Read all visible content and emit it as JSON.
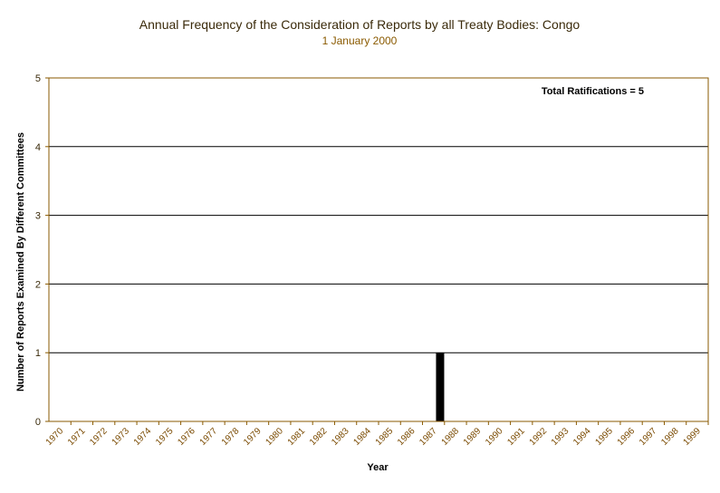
{
  "chart_data": {
    "type": "bar",
    "title": "Annual Frequency of the Consideration of Reports by all Treaty Bodies: Congo",
    "subtitle": "1 January 2000",
    "xlabel": "Year",
    "ylabel": "Number of Reports Examined By Different Committees",
    "annotation": "Total Ratifications = 5",
    "categories": [
      "1970",
      "1971",
      "1972",
      "1973",
      "1974",
      "1975",
      "1976",
      "1977",
      "1978",
      "1979",
      "1980",
      "1981",
      "1982",
      "1983",
      "1984",
      "1985",
      "1986",
      "1987",
      "1988",
      "1989",
      "1990",
      "1991",
      "1992",
      "1993",
      "1994",
      "1995",
      "1996",
      "1997",
      "1998",
      "1999"
    ],
    "values": [
      0,
      0,
      0,
      0,
      0,
      0,
      0,
      0,
      0,
      0,
      0,
      0,
      0,
      0,
      0,
      0,
      0,
      1,
      0,
      0,
      0,
      0,
      0,
      0,
      0,
      0,
      0,
      0,
      0,
      0
    ],
    "ylim": [
      0,
      5
    ],
    "yticks": [
      0,
      1,
      2,
      3,
      4,
      5
    ],
    "grid": true,
    "colors": {
      "bar": "#000000",
      "axis": "#8a5a00",
      "grid": "#000000"
    }
  }
}
